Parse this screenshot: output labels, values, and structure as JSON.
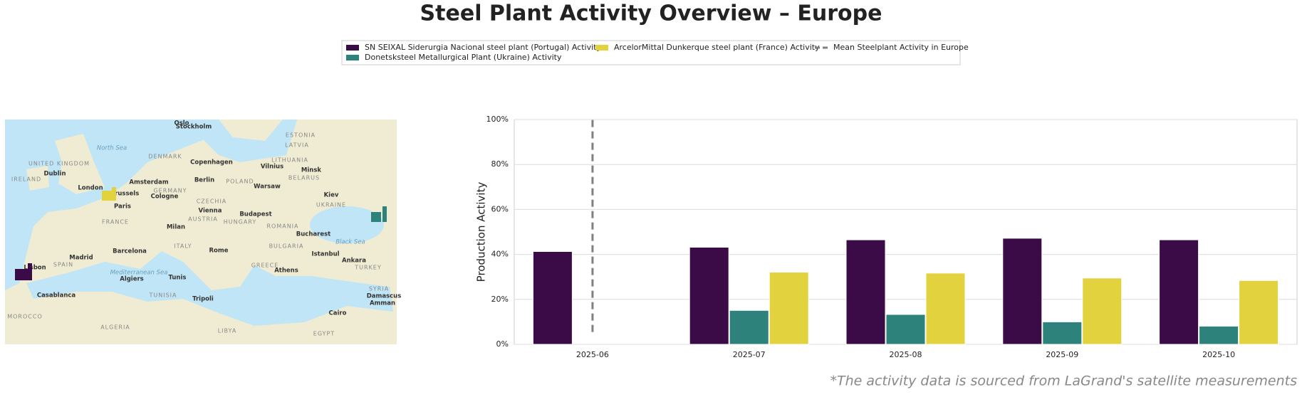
{
  "chart_data": {
    "type": "bar",
    "title": "Steel Plant Activity Overview – Europe",
    "ylabel": "Production Activity",
    "footnote": "*The activity data is sourced from LaGrand's satellite measurements",
    "categories": [
      "2025-06",
      "2025-07",
      "2025-08",
      "2025-09",
      "2025-10"
    ],
    "series": [
      {
        "name": "SN SEIXAL Siderurgia Nacional steel plant (Portugal) Activity",
        "color": "#3b0b48",
        "values": [
          41.3,
          43.2,
          46.5,
          47.2,
          46.5
        ]
      },
      {
        "name": "Donetsksteel Metallurgical Plant (Ukraine) Activity",
        "color": "#2d837c",
        "values": [
          null,
          15.1,
          13.3,
          10,
          8.1
        ]
      },
      {
        "name": "ArcelorMittal Dunkerque steel plant (France) Activity",
        "color": "#e2d23d",
        "values": [
          null,
          32.1,
          31.7,
          29.5,
          28.4
        ]
      }
    ],
    "mean_line": {
      "name": "Mean Steelplant Activity in Europe",
      "color": "#808080",
      "range": [
        5.5,
        100
      ]
    },
    "ylim": [
      0,
      100
    ],
    "yticks": [
      {
        "value": 0,
        "label": "0%"
      },
      {
        "value": 20,
        "label": "20%"
      },
      {
        "value": 40,
        "label": "40%"
      },
      {
        "value": 60,
        "label": "60%"
      },
      {
        "value": 80,
        "label": "80%"
      },
      {
        "value": 100,
        "label": "100%"
      }
    ],
    "grid": true,
    "map": {
      "labels": [
        "Oslo",
        "Stockholm",
        "North Sea",
        "DENMARK",
        "Copenhagen",
        "LITHUANIA",
        "Vilnius",
        "Minsk",
        "BELARUS",
        "UNITED KINGDOM",
        "Dublin",
        "IRELAND",
        "London",
        "Amsterdam",
        "Berlin",
        "POLAND",
        "Warsaw",
        "Brussels",
        "GERMANY",
        "Cologne",
        "Paris",
        "CZECHIA",
        "UKRAINE",
        "Kiev",
        "FRANCE",
        "Vienna",
        "AUSTRIA",
        "HUNGARY",
        "Budapest",
        "Milan",
        "ROMANIA",
        "Bucharest",
        "Black Sea",
        "ITALY",
        "Rome",
        "BULGARIA",
        "Istanbul",
        "Madrid",
        "SPAIN",
        "Barcelona",
        "Lisbon",
        "Ankara",
        "TURKEY",
        "GREECE",
        "Athens",
        "Tunis",
        "Algiers",
        "Mediterranean Sea",
        "Casablanca",
        "TUNISIA",
        "Tripoli",
        "SYRIA",
        "Damascus",
        "Amman",
        "MOROCCO",
        "ALGERIA",
        "LIBYA",
        "EGYPT",
        "Cairo",
        "ESTONIA",
        "LATVIA"
      ]
    }
  }
}
